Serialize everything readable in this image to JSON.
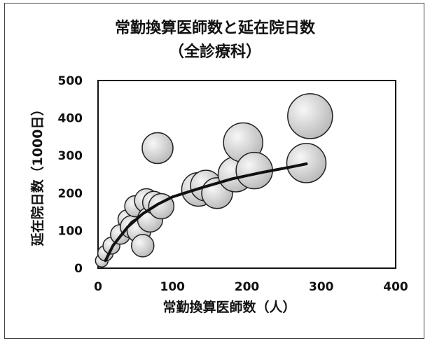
{
  "chart_data": {
    "type": "scatter",
    "title": "常勤換算医師数と延在院日数",
    "subtitle": "（全診療科）",
    "xlabel": "常勤換算医師数（人）",
    "ylabel": "延在院日数（1000日）",
    "xlim": [
      0,
      400
    ],
    "ylim": [
      0,
      500
    ],
    "xticks": [
      "0",
      "100",
      "200",
      "300",
      "400"
    ],
    "yticks": [
      "0",
      "100",
      "200",
      "300",
      "400",
      "500"
    ],
    "grid": false,
    "legend": "none",
    "bubble_color": "#d9d9d9",
    "curve_color": "#111111",
    "points": [
      {
        "x": 5,
        "y": 20,
        "r": 9
      },
      {
        "x": 10,
        "y": 40,
        "r": 11
      },
      {
        "x": 18,
        "y": 60,
        "r": 12
      },
      {
        "x": 30,
        "y": 90,
        "r": 14
      },
      {
        "x": 40,
        "y": 130,
        "r": 14
      },
      {
        "x": 45,
        "y": 110,
        "r": 16
      },
      {
        "x": 50,
        "y": 165,
        "r": 15
      },
      {
        "x": 55,
        "y": 100,
        "r": 17
      },
      {
        "x": 60,
        "y": 60,
        "r": 16
      },
      {
        "x": 65,
        "y": 180,
        "r": 17
      },
      {
        "x": 70,
        "y": 130,
        "r": 18
      },
      {
        "x": 75,
        "y": 175,
        "r": 16
      },
      {
        "x": 80,
        "y": 320,
        "r": 22
      },
      {
        "x": 85,
        "y": 165,
        "r": 18
      },
      {
        "x": 135,
        "y": 210,
        "r": 24
      },
      {
        "x": 145,
        "y": 220,
        "r": 22
      },
      {
        "x": 160,
        "y": 200,
        "r": 22
      },
      {
        "x": 185,
        "y": 250,
        "r": 25
      },
      {
        "x": 195,
        "y": 335,
        "r": 28
      },
      {
        "x": 210,
        "y": 260,
        "r": 26
      },
      {
        "x": 285,
        "y": 405,
        "r": 32
      },
      {
        "x": 280,
        "y": 280,
        "r": 28
      }
    ],
    "trend_curve": [
      {
        "x": 10,
        "y": 20
      },
      {
        "x": 20,
        "y": 60
      },
      {
        "x": 40,
        "y": 110
      },
      {
        "x": 60,
        "y": 145
      },
      {
        "x": 80,
        "y": 170
      },
      {
        "x": 100,
        "y": 190
      },
      {
        "x": 140,
        "y": 215
      },
      {
        "x": 180,
        "y": 238
      },
      {
        "x": 220,
        "y": 255
      },
      {
        "x": 260,
        "y": 270
      },
      {
        "x": 280,
        "y": 278
      }
    ]
  }
}
